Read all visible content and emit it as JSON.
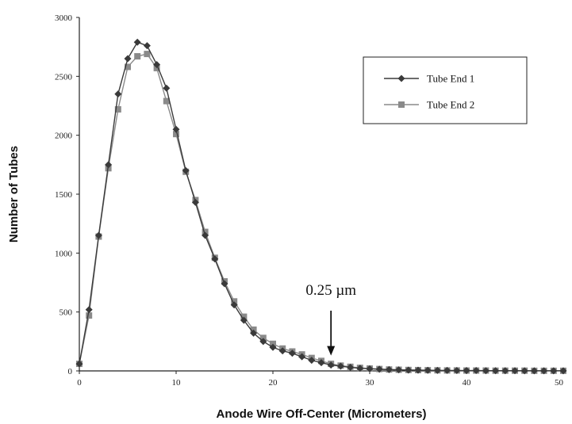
{
  "chart_data": {
    "type": "line",
    "xlabel": "Anode Wire Off-Center (Micrometers)",
    "ylabel": "Number of Tubes",
    "xlim": [
      0,
      50
    ],
    "ylim": [
      0,
      3000
    ],
    "xticks": [
      0,
      10,
      20,
      30,
      40,
      50
    ],
    "yticks": [
      0,
      500,
      1000,
      1500,
      2000,
      2500,
      3000
    ],
    "xtick_labels": [
      "0",
      "10",
      "20",
      "30",
      "40",
      "50"
    ],
    "ytick_labels": [
      "0",
      "500",
      "1000",
      "1500",
      "2000",
      "2500",
      "3000"
    ],
    "grid": false,
    "legend_position": "top-right",
    "annotation": {
      "text": "0.25 µm",
      "x": 26,
      "y": 130
    },
    "x": [
      0,
      1,
      2,
      3,
      4,
      5,
      6,
      7,
      8,
      9,
      10,
      11,
      12,
      13,
      14,
      15,
      16,
      17,
      18,
      19,
      20,
      21,
      22,
      23,
      24,
      25,
      26,
      27,
      28,
      29,
      30,
      31,
      32,
      33,
      34,
      35,
      36,
      37,
      38,
      39,
      40,
      41,
      42,
      43,
      44,
      45,
      46,
      47,
      48,
      49,
      50
    ],
    "series": [
      {
        "name": "Tube End 1",
        "marker": "diamond",
        "color": "#3a3a3a",
        "values": [
          60,
          520,
          1150,
          1750,
          2350,
          2650,
          2790,
          2760,
          2600,
          2400,
          2050,
          1700,
          1430,
          1150,
          950,
          740,
          560,
          430,
          320,
          250,
          200,
          170,
          150,
          120,
          90,
          70,
          50,
          40,
          30,
          22,
          18,
          14,
          11,
          9,
          7,
          6,
          5,
          4,
          4,
          3,
          3,
          3,
          2,
          2,
          2,
          2,
          1,
          1,
          1,
          1,
          1
        ]
      },
      {
        "name": "Tube End 2",
        "marker": "square",
        "color": "#8a8a8a",
        "values": [
          60,
          470,
          1140,
          1720,
          2220,
          2580,
          2670,
          2690,
          2570,
          2290,
          2010,
          1690,
          1450,
          1180,
          960,
          760,
          590,
          460,
          350,
          280,
          230,
          190,
          165,
          140,
          110,
          85,
          60,
          45,
          35,
          26,
          20,
          16,
          12,
          10,
          8,
          7,
          6,
          5,
          4,
          4,
          3,
          3,
          3,
          2,
          2,
          2,
          2,
          1,
          1,
          1,
          1
        ]
      }
    ]
  }
}
